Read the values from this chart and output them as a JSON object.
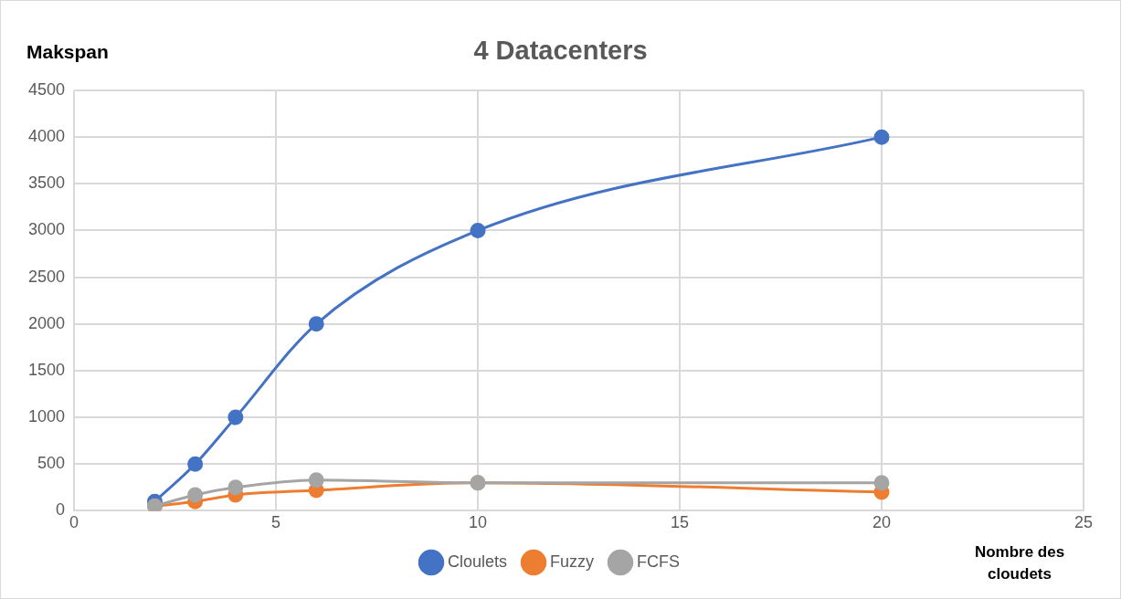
{
  "chart_data": {
    "type": "line",
    "title": "4 Datacenters",
    "xlabel": "Nombre des cloudets",
    "ylabel": "Makspan",
    "x": [
      2,
      3,
      4,
      6,
      10,
      20
    ],
    "series": [
      {
        "name": "Cloulets",
        "color": "#4472c4",
        "values": [
          100,
          500,
          1000,
          2000,
          3000,
          4000
        ]
      },
      {
        "name": "Fuzzy",
        "color": "#ed7d31",
        "values": [
          50,
          100,
          170,
          220,
          300,
          200
        ]
      },
      {
        "name": "FCFS",
        "color": "#a5a5a5",
        "values": [
          50,
          170,
          250,
          330,
          300,
          300
        ]
      }
    ],
    "xlim": [
      0,
      25
    ],
    "xticks": [
      0,
      5,
      10,
      15,
      20,
      25
    ],
    "ylim": [
      0,
      4500
    ],
    "yticks": [
      0,
      500,
      1000,
      1500,
      2000,
      2500,
      3000,
      3500,
      4000,
      4500
    ],
    "grid": true,
    "legend": "bottom",
    "marker": "circle",
    "line_style": "solid"
  }
}
